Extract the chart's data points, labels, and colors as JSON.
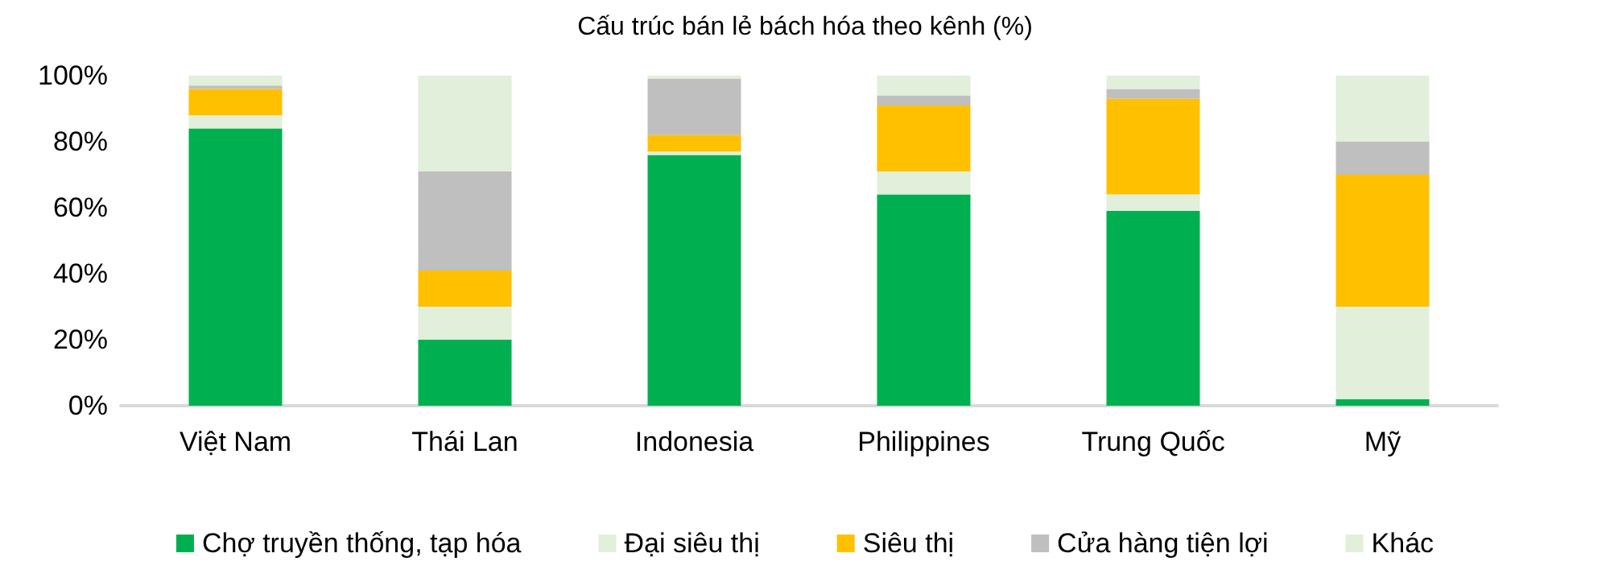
{
  "chart_data": {
    "type": "bar",
    "title": "Cấu trúc bán lẻ bách hóa theo kênh (%)",
    "stacked": true,
    "categories": [
      "Việt Nam",
      "Thái Lan",
      "Indonesia",
      "Philippines",
      "Trung Quốc",
      "Mỹ"
    ],
    "series": [
      {
        "name": "Chợ truyền thống, tạp hóa",
        "color": "#00b050",
        "values": [
          84,
          20,
          76,
          64,
          59,
          2
        ]
      },
      {
        "name": "Đại siêu thị",
        "color": "#e2efda",
        "values": [
          4,
          10,
          1,
          7,
          5,
          28
        ]
      },
      {
        "name": "Siêu thị",
        "color": "#ffc000",
        "values": [
          8,
          11,
          5,
          20,
          29,
          40
        ]
      },
      {
        "name": "Cửa hàng tiện lợi",
        "color": "#bfbfbf",
        "values": [
          1,
          30,
          17,
          3,
          3,
          10
        ]
      },
      {
        "name": "Khác",
        "color": "#e2efda",
        "values": [
          3,
          29,
          1,
          6,
          4,
          20
        ]
      }
    ],
    "ylim": [
      0,
      100
    ],
    "yticks": [
      {
        "value": 0,
        "label": "0%"
      },
      {
        "value": 20,
        "label": "20%"
      },
      {
        "value": 40,
        "label": "40%"
      },
      {
        "value": 60,
        "label": "60%"
      },
      {
        "value": 80,
        "label": "80%"
      },
      {
        "value": 100,
        "label": "100%"
      }
    ],
    "grid": false,
    "legend": "bottom"
  }
}
